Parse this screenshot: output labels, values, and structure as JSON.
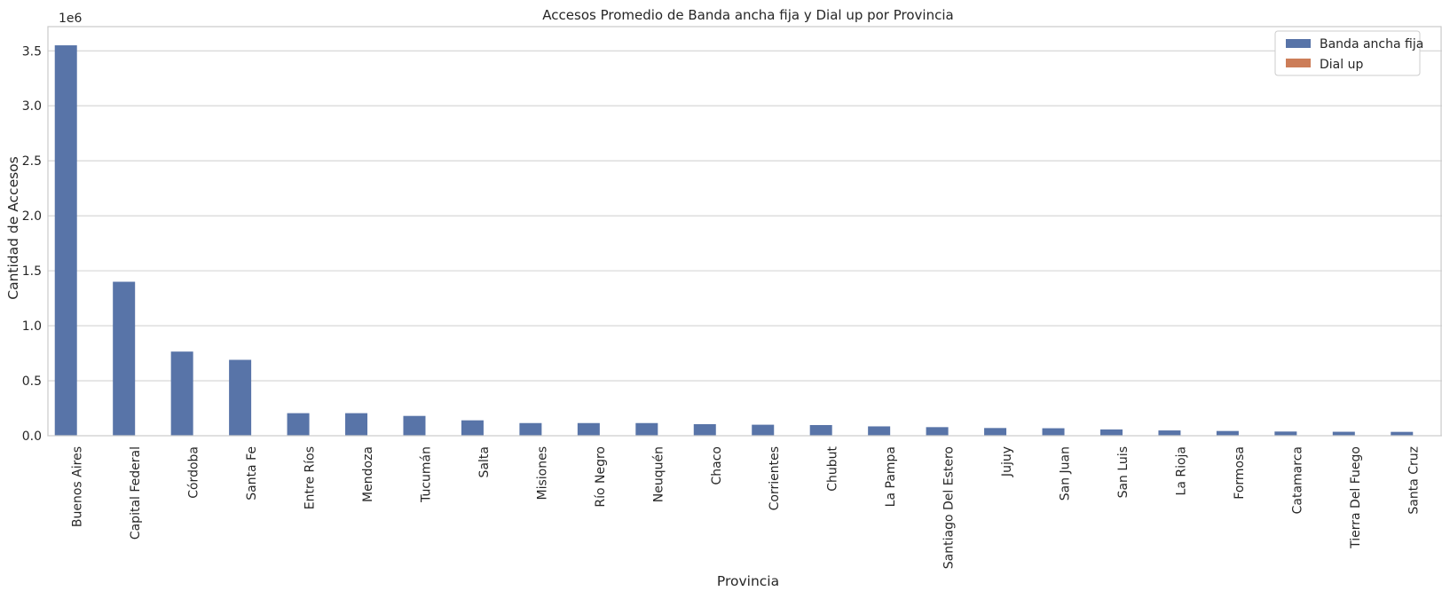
{
  "chart_data": {
    "type": "bar",
    "title": "Accesos Promedio de Banda ancha fija y Dial up por Provincia",
    "xlabel": "Provincia",
    "ylabel": "Cantidad de Accesos",
    "y_offset_label": "1e6",
    "ylim": [
      0,
      3720000
    ],
    "yticks": [
      0,
      500000,
      1000000,
      1500000,
      2000000,
      2500000,
      3000000,
      3500000
    ],
    "ytick_labels": [
      "0.0",
      "0.5",
      "1.0",
      "1.5",
      "2.0",
      "2.5",
      "3.0",
      "3.5"
    ],
    "grid": "horizontal",
    "legend_position": "top-right",
    "categories": [
      "Buenos Aires",
      "Capital Federal",
      "Córdoba",
      "Santa Fe",
      "Entre Ríos",
      "Mendoza",
      "Tucumán",
      "Salta",
      "Misiones",
      "Río Negro",
      "Neuquén",
      "Chaco",
      "Corrientes",
      "Chubut",
      "La Pampa",
      "Santiago Del Estero",
      "Jujuy",
      "San Juan",
      "San Luis",
      "La Rioja",
      "Formosa",
      "Catamarca",
      "Tierra Del Fuego",
      "Santa Cruz"
    ],
    "series": [
      {
        "name": "Banda ancha fija",
        "color": "#5874a8",
        "values": [
          3550000,
          1400000,
          765000,
          690000,
          205000,
          205000,
          180000,
          140000,
          115000,
          115000,
          115000,
          105000,
          100000,
          97000,
          85000,
          78000,
          70000,
          68000,
          57000,
          48000,
          43000,
          38000,
          36000,
          35000
        ]
      },
      {
        "name": "Dial up",
        "color": "#cc7d58",
        "values": [
          2500,
          1800,
          700,
          600,
          200,
          300,
          200,
          150,
          100,
          150,
          100,
          100,
          100,
          80,
          80,
          80,
          60,
          60,
          50,
          40,
          40,
          30,
          20,
          30
        ]
      }
    ]
  }
}
